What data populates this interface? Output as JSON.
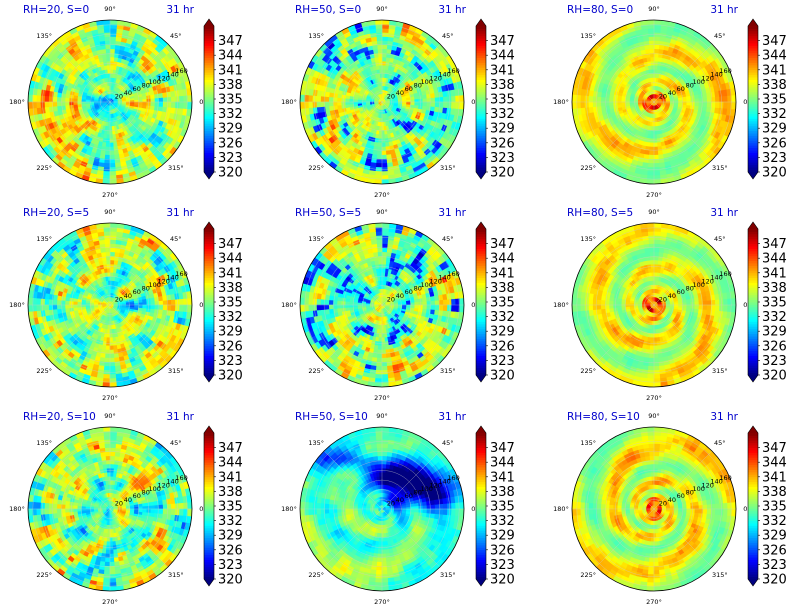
{
  "chart_data": {
    "type": "heatmap",
    "layout": "3x3 grid of polar plots, each with colorbar",
    "colormap": "jet",
    "colorbar": {
      "min": 320,
      "max": 350,
      "extend": "both",
      "tick_labels": [
        "347",
        "344",
        "341",
        "338",
        "335",
        "332",
        "329",
        "326",
        "323",
        "320"
      ]
    },
    "angular_tick_labels": [
      "90°",
      "45°",
      "0°",
      "315°",
      "270°",
      "225°",
      "180°",
      "135°"
    ],
    "radial_tick_labels": [
      "20",
      "40",
      "60",
      "80",
      "100",
      "120",
      "140",
      "160"
    ],
    "time_label": "31 hr",
    "panels": [
      {
        "title": "RH=20, S=0",
        "pattern": "scattered"
      },
      {
        "title": "RH=50, S=0",
        "pattern": "scattered-dry"
      },
      {
        "title": "RH=80, S=0",
        "pattern": "tc-spiral"
      },
      {
        "title": "RH=20, S=5",
        "pattern": "scattered"
      },
      {
        "title": "RH=50, S=5",
        "pattern": "scattered-dry"
      },
      {
        "title": "RH=80, S=5",
        "pattern": "tc-spiral"
      },
      {
        "title": "RH=20, S=10",
        "pattern": "scattered"
      },
      {
        "title": "RH=50, S=10",
        "pattern": "sheared-dry"
      },
      {
        "title": "RH=80, S=10",
        "pattern": "tc-spiral"
      }
    ]
  }
}
